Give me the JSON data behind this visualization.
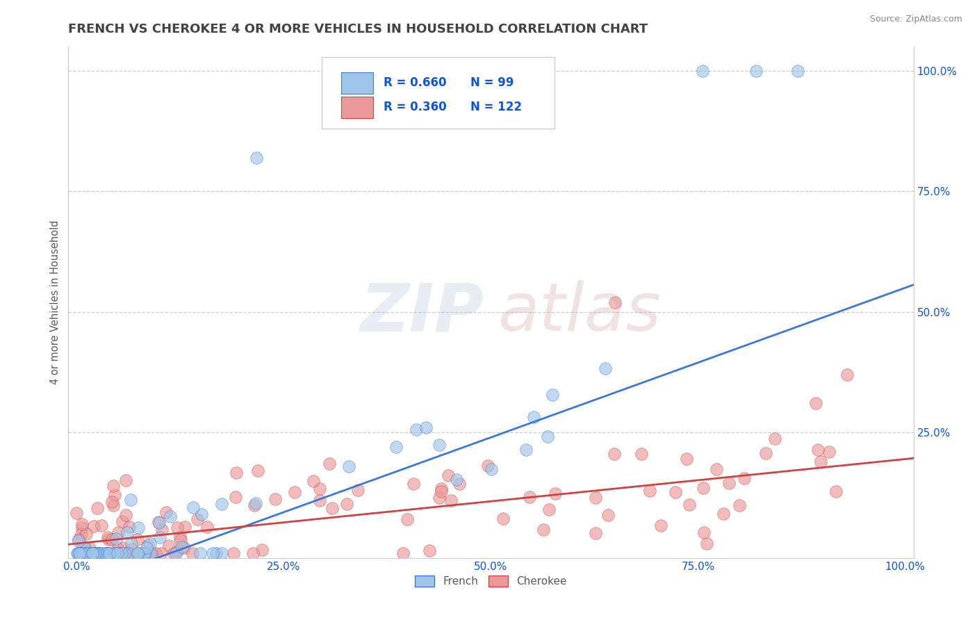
{
  "title": "FRENCH VS CHEROKEE 4 OR MORE VEHICLES IN HOUSEHOLD CORRELATION CHART",
  "source_text": "Source: ZipAtlas.com",
  "ylabel": "4 or more Vehicles in Household",
  "legend_french_R": "0.660",
  "legend_french_N": "99",
  "legend_cherokee_R": "0.360",
  "legend_cherokee_N": "122",
  "french_scatter_color": "#9fc5e8",
  "french_line_color": "#3c78d8",
  "cherokee_scatter_color": "#ea9999",
  "cherokee_line_color": "#cc4444",
  "background_color": "#ffffff",
  "title_color": "#434343",
  "axis_tick_color": "#1155cc",
  "ylabel_color": "#595959",
  "grid_color": "#cccccc",
  "source_color": "#888888",
  "legend_box_color": "#eeeeee",
  "figsize": [
    14.06,
    8.92
  ],
  "dpi": 100,
  "french_slope": 0.62,
  "french_intercept": -0.07,
  "cherokee_slope": 0.175,
  "cherokee_intercept": 0.02
}
